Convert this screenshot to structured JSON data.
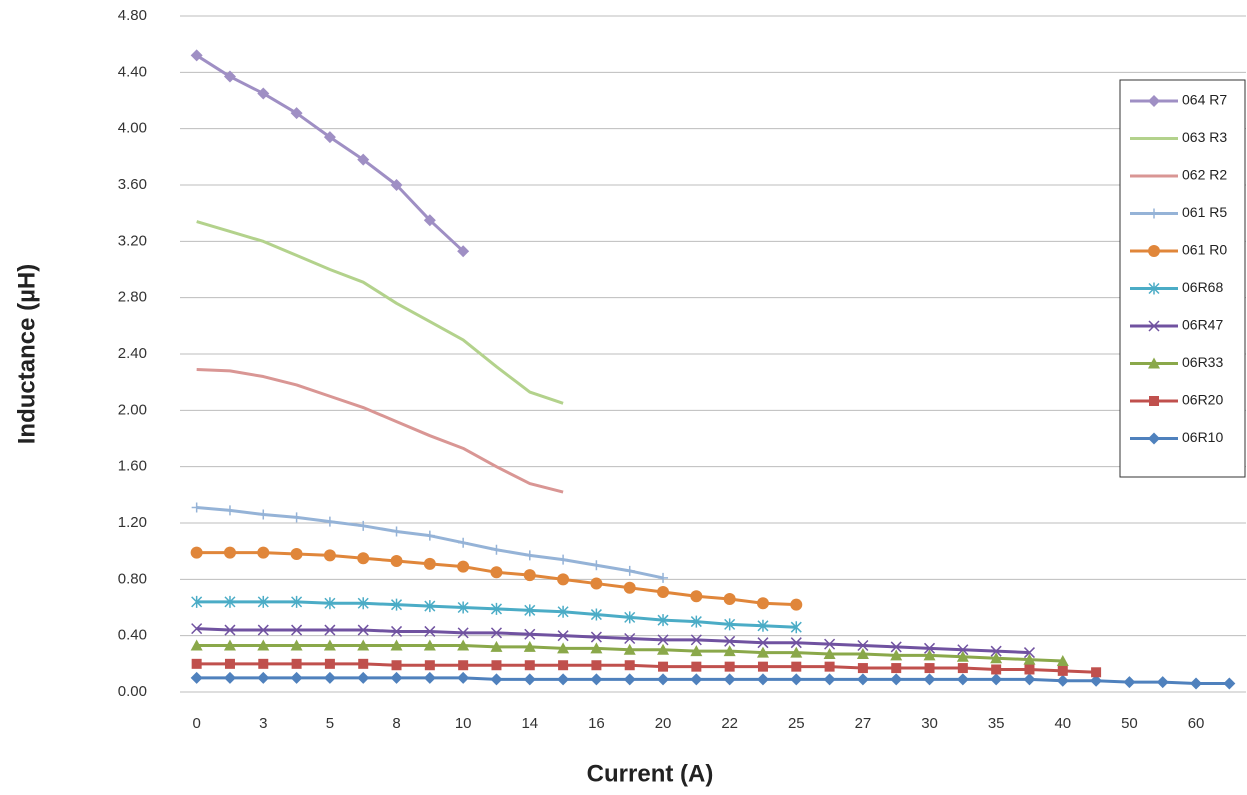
{
  "chart_data": {
    "type": "line",
    "x_label": "Current (A)",
    "y_label": "Inductance (µH)",
    "categories": [
      "0",
      null,
      "3",
      null,
      "5",
      null,
      "8",
      null,
      "10",
      null,
      "14",
      null,
      "16",
      null,
      "20",
      null,
      "22",
      null,
      "25",
      null,
      "27",
      null,
      "30",
      null,
      "35",
      null,
      "40",
      null,
      "50",
      null,
      "60",
      null
    ],
    "ylim": [
      0,
      4.8
    ],
    "yticks": [
      {
        "value": 0,
        "label": "0.00"
      },
      {
        "value": 0.4,
        "label": "0.40"
      },
      {
        "value": 0.8,
        "label": "0.80"
      },
      {
        "value": 1.2,
        "label": "1.20"
      },
      {
        "value": 1.6,
        "label": "1.60"
      },
      {
        "value": 2.0,
        "label": "2.00"
      },
      {
        "value": 2.4,
        "label": "2.40"
      },
      {
        "value": 2.8,
        "label": "2.80"
      },
      {
        "value": 3.2,
        "label": "3.20"
      },
      {
        "value": 3.6,
        "label": "3.60"
      },
      {
        "value": 4.0,
        "label": "4.00"
      },
      {
        "value": 4.4,
        "label": "4.40"
      },
      {
        "value": 4.8,
        "label": "4.80"
      }
    ],
    "grid": true,
    "legend": "right",
    "series": [
      {
        "name": "064 R7",
        "color": "#9f8fc4",
        "marker": "diamond",
        "values": [
          4.52,
          4.37,
          4.25,
          4.11,
          3.94,
          3.78,
          3.6,
          3.35,
          3.13,
          null,
          null,
          null,
          null,
          null,
          null,
          null,
          null,
          null,
          null,
          null,
          null,
          null,
          null,
          null,
          null,
          null,
          null,
          null,
          null,
          null,
          null,
          null
        ]
      },
      {
        "name": "063 R3",
        "color": "#b3d28c",
        "marker": "none",
        "values": [
          3.34,
          3.27,
          3.2,
          3.1,
          3.0,
          2.91,
          2.76,
          2.63,
          2.5,
          2.31,
          2.13,
          2.05,
          null,
          null,
          null,
          null,
          null,
          null,
          null,
          null,
          null,
          null,
          null,
          null,
          null,
          null,
          null,
          null,
          null,
          null,
          null,
          null
        ]
      },
      {
        "name": "062 R2",
        "color": "#d99694",
        "marker": "none",
        "values": [
          2.29,
          2.28,
          2.24,
          2.18,
          2.1,
          2.02,
          1.92,
          1.82,
          1.73,
          1.6,
          1.48,
          1.42,
          null,
          null,
          null,
          null,
          null,
          null,
          null,
          null,
          null,
          null,
          null,
          null,
          null,
          null,
          null,
          null,
          null,
          null,
          null,
          null
        ]
      },
      {
        "name": "061 R5",
        "color": "#95b3d7",
        "marker": "plus",
        "values": [
          1.31,
          1.29,
          1.26,
          1.24,
          1.21,
          1.18,
          1.14,
          1.11,
          1.06,
          1.01,
          0.97,
          0.94,
          0.9,
          0.86,
          0.81,
          null,
          null,
          null,
          null,
          null,
          null,
          null,
          null,
          null,
          null,
          null,
          null,
          null,
          null,
          null,
          null,
          null
        ]
      },
      {
        "name": "061 R0",
        "color": "#e0863a",
        "marker": "circle",
        "values": [
          0.99,
          0.99,
          0.99,
          0.98,
          0.97,
          0.95,
          0.93,
          0.91,
          0.89,
          0.85,
          0.83,
          0.8,
          0.77,
          0.74,
          0.71,
          0.68,
          0.66,
          0.63,
          0.62,
          null,
          null,
          null,
          null,
          null,
          null,
          null,
          null,
          null,
          null,
          null,
          null,
          null
        ]
      },
      {
        "name": "06R68",
        "color": "#4bacc6",
        "marker": "asterisk",
        "values": [
          0.64,
          0.64,
          0.64,
          0.64,
          0.63,
          0.63,
          0.62,
          0.61,
          0.6,
          0.59,
          0.58,
          0.57,
          0.55,
          0.53,
          0.51,
          0.5,
          0.48,
          0.47,
          0.46,
          null,
          null,
          null,
          null,
          null,
          null,
          null,
          null,
          null,
          null,
          null,
          null,
          null
        ]
      },
      {
        "name": "06R47",
        "color": "#7052a0",
        "marker": "x",
        "values": [
          0.45,
          0.44,
          0.44,
          0.44,
          0.44,
          0.44,
          0.43,
          0.43,
          0.42,
          0.42,
          0.41,
          0.4,
          0.39,
          0.38,
          0.37,
          0.37,
          0.36,
          0.35,
          0.35,
          0.34,
          0.33,
          0.32,
          0.31,
          0.3,
          0.29,
          0.28,
          null,
          null,
          null,
          null,
          null,
          null
        ]
      },
      {
        "name": "06R33",
        "color": "#8aa84a",
        "marker": "triangle",
        "values": [
          0.33,
          0.33,
          0.33,
          0.33,
          0.33,
          0.33,
          0.33,
          0.33,
          0.33,
          0.32,
          0.32,
          0.31,
          0.31,
          0.3,
          0.3,
          0.29,
          0.29,
          0.28,
          0.28,
          0.27,
          0.27,
          0.26,
          0.26,
          0.25,
          0.24,
          0.23,
          0.22,
          null,
          null,
          null,
          null,
          null
        ]
      },
      {
        "name": "06R20",
        "color": "#c0504d",
        "marker": "square",
        "values": [
          0.2,
          0.2,
          0.2,
          0.2,
          0.2,
          0.2,
          0.19,
          0.19,
          0.19,
          0.19,
          0.19,
          0.19,
          0.19,
          0.19,
          0.18,
          0.18,
          0.18,
          0.18,
          0.18,
          0.18,
          0.17,
          0.17,
          0.17,
          0.17,
          0.16,
          0.16,
          0.15,
          0.14,
          null,
          null,
          null,
          null
        ]
      },
      {
        "name": "06R10",
        "color": "#4f81bd",
        "marker": "diamond",
        "values": [
          0.1,
          0.1,
          0.1,
          0.1,
          0.1,
          0.1,
          0.1,
          0.1,
          0.1,
          0.09,
          0.09,
          0.09,
          0.09,
          0.09,
          0.09,
          0.09,
          0.09,
          0.09,
          0.09,
          0.09,
          0.09,
          0.09,
          0.09,
          0.09,
          0.09,
          0.09,
          0.08,
          0.08,
          0.07,
          0.07,
          0.06,
          0.06
        ]
      }
    ]
  }
}
